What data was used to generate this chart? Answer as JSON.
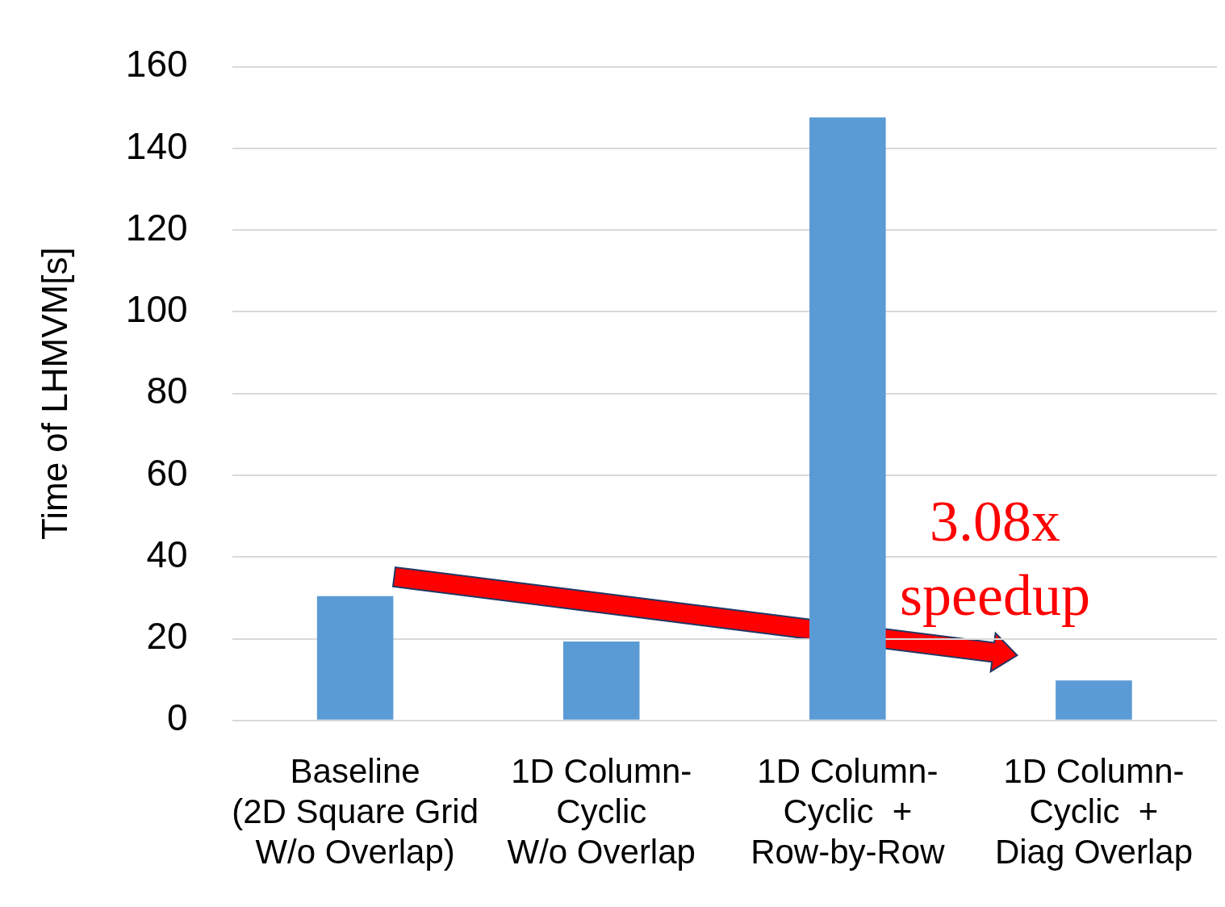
{
  "chart_data": {
    "type": "bar",
    "ylabel": "Time of LHMVM[s]",
    "categories": [
      "Baseline\n(2D Square Grid\nW/o Overlap)",
      "1D Column-\nCyclic\nW/o Overlap",
      "1D Column-\nCyclic  +\nRow-by-Row",
      "1D Column-\nCyclic  +\nDiag Overlap"
    ],
    "values": [
      30.4,
      19.3,
      147.6,
      9.8
    ],
    "color": "#5b9bd5",
    "ylim": [
      0,
      160
    ],
    "yticks": [
      0,
      20,
      40,
      60,
      80,
      100,
      120,
      140,
      160
    ],
    "grid": "y",
    "legend": false,
    "annotations": [
      "3.08x speedup"
    ]
  }
}
